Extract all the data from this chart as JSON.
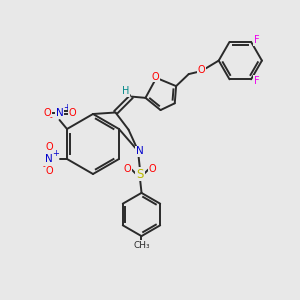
{
  "bg_color": "#e8e8e8",
  "bond_color": "#2a2a2a",
  "bond_width": 1.4,
  "atom_colors": {
    "O": "#ff0000",
    "N": "#0000cc",
    "S": "#bbbb00",
    "F": "#ee00ee",
    "H": "#008888",
    "C": "#2a2a2a",
    "NO2_N": "#0000cc",
    "NO2_O": "#ff0000"
  },
  "font_size": 7.0
}
